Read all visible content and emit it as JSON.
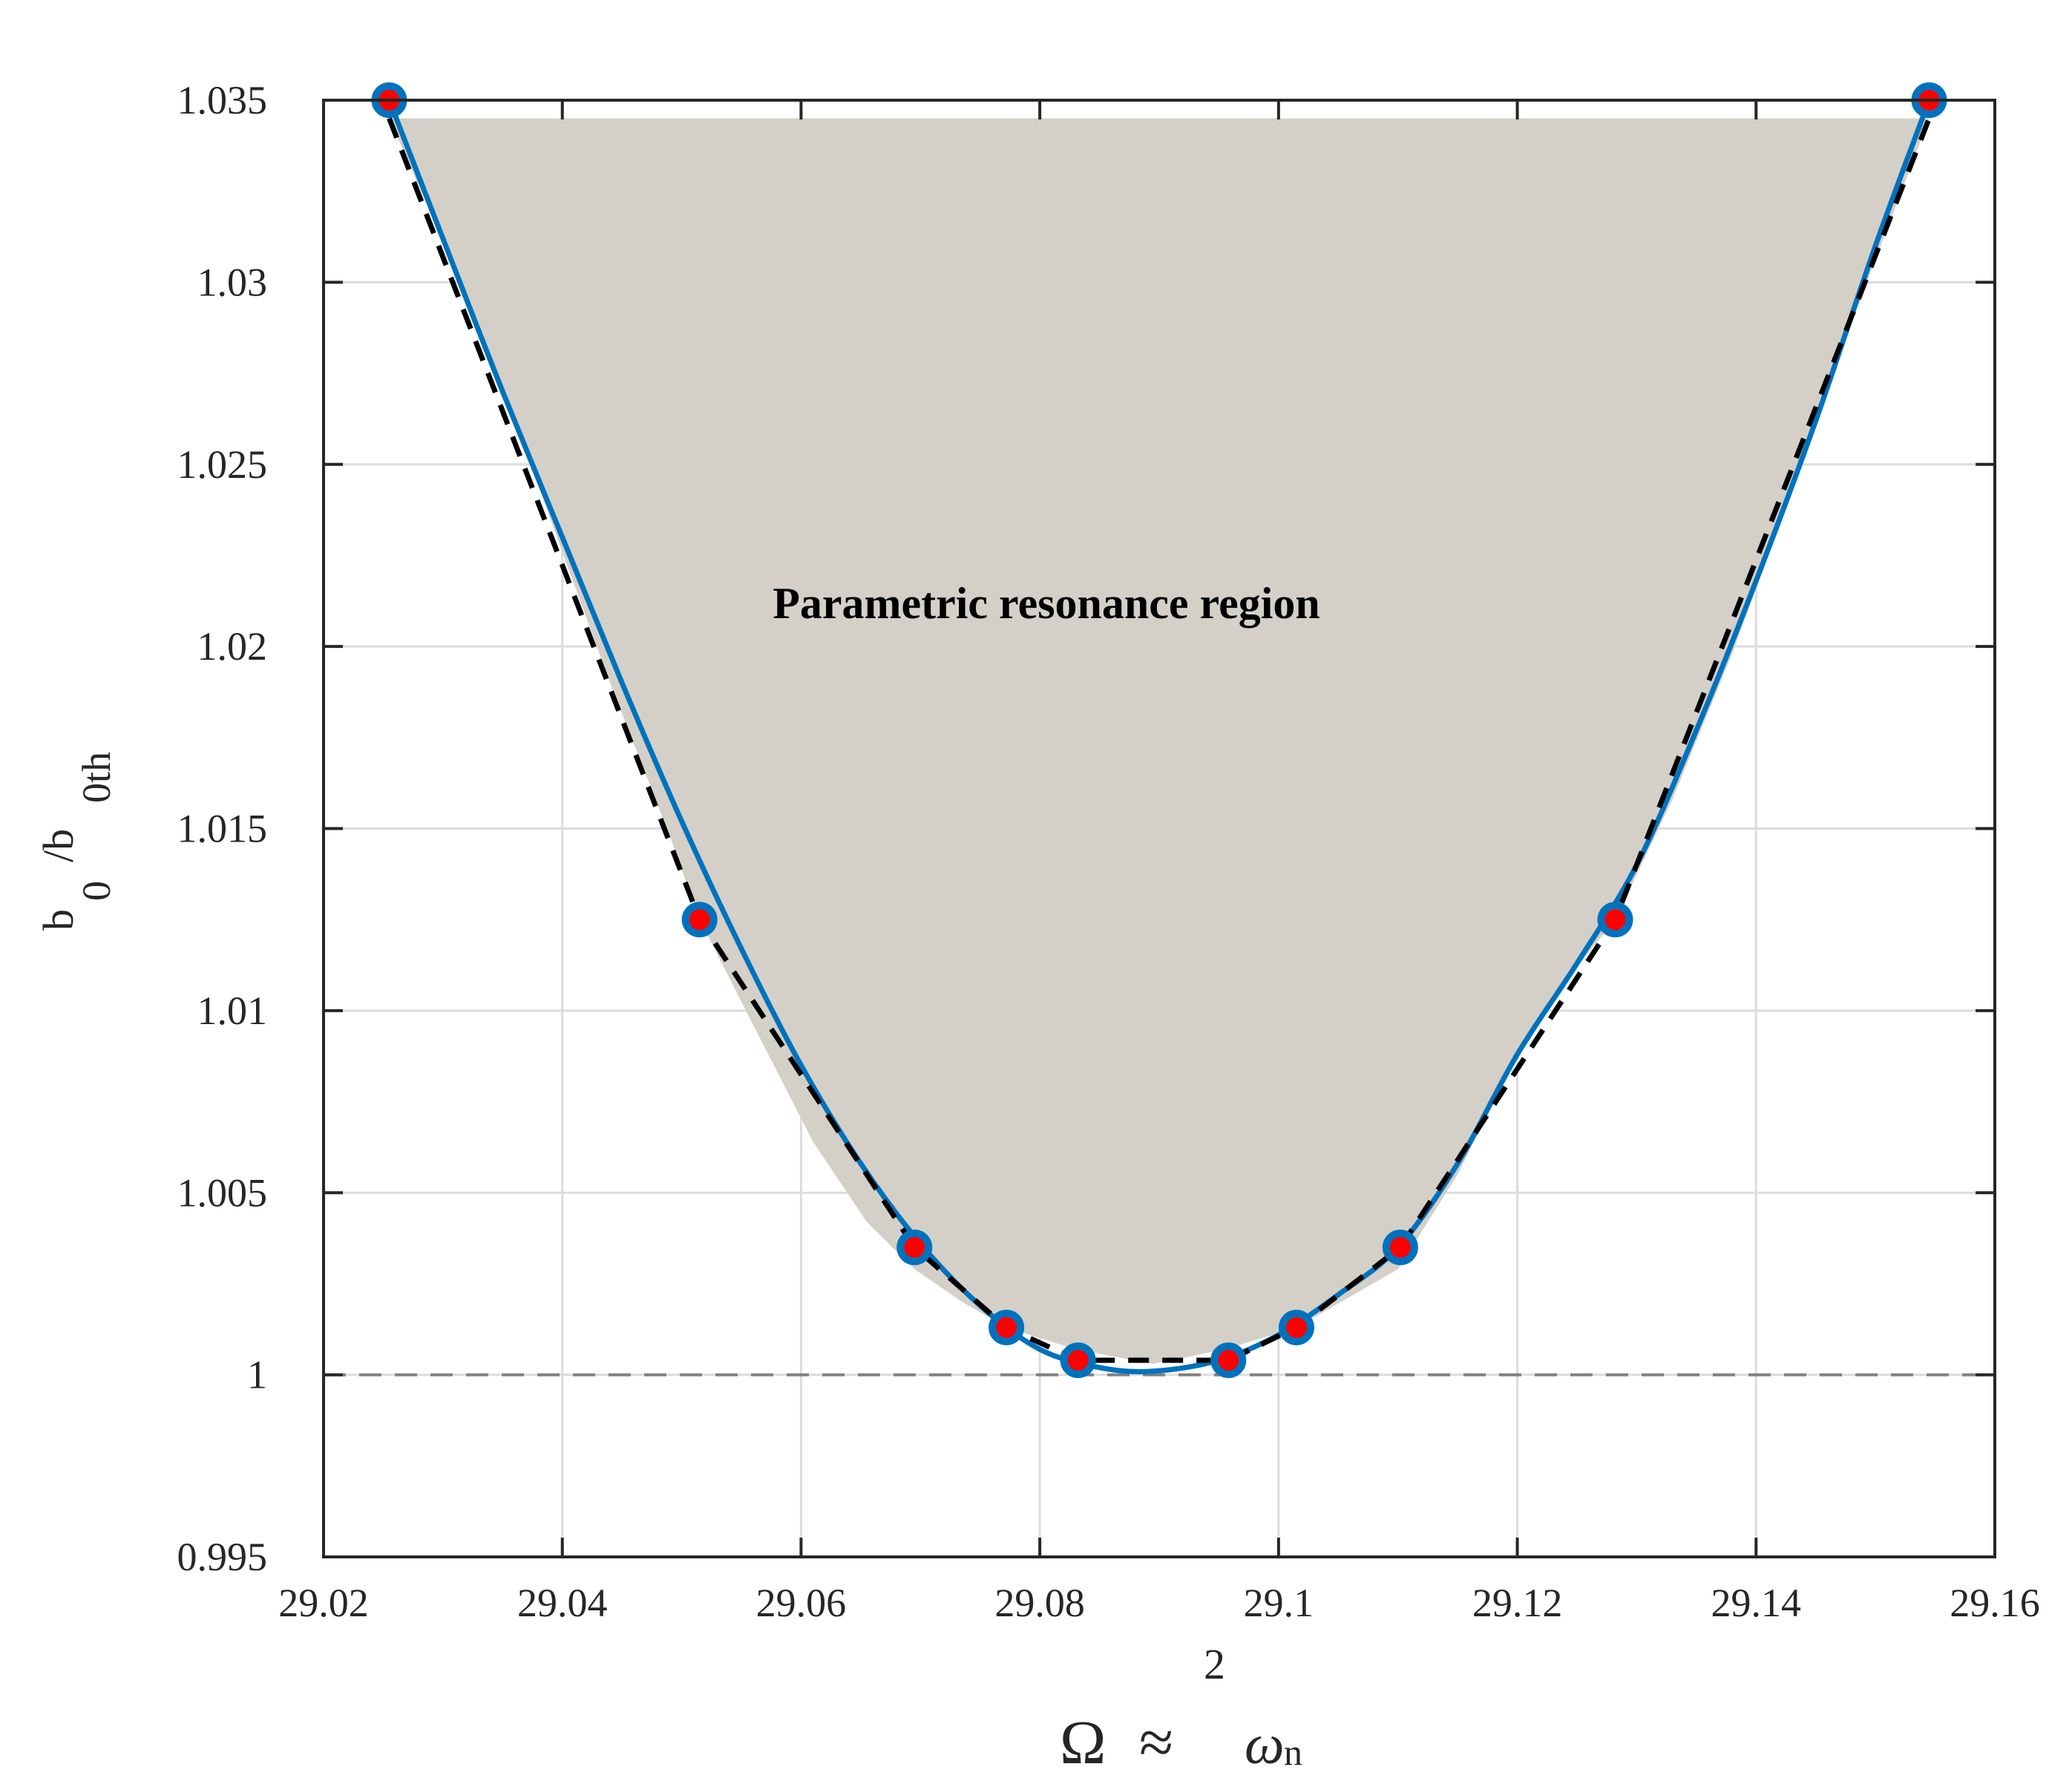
{
  "chart_data": {
    "type": "line",
    "title": "",
    "xlim": [
      29.02,
      29.16
    ],
    "ylim": [
      0.995,
      1.035
    ],
    "x_ticks": [
      29.02,
      29.04,
      29.06,
      29.08,
      29.1,
      29.12,
      29.14,
      29.16
    ],
    "x_tick_labels": [
      "29.02",
      "29.04",
      "29.06",
      "29.08",
      "29.1",
      "29.12",
      "29.14",
      "29.16"
    ],
    "y_ticks": [
      0.995,
      1,
      1.005,
      1.01,
      1.015,
      1.02,
      1.025,
      1.03,
      1.035
    ],
    "y_tick_labels": [
      "0.995",
      "1",
      "1.005",
      "1.01",
      "1.015",
      "1.02",
      "1.025",
      "1.03",
      "1.035"
    ],
    "grid": true,
    "xlabel": {
      "omega": "Ω",
      "approx": "≈",
      "power": "2",
      "symbol": "ω",
      "subscript": "n"
    },
    "ylabel": {
      "part1": "b",
      "sub1": "0",
      "slash": "/b",
      "sub2": "0th"
    },
    "annotation": "Parametric resonance region",
    "reference_line": {
      "y": 1,
      "style": "dashed",
      "color": "#808080"
    },
    "region": {
      "fill_color": "#d4d0c8",
      "top": 1.0345,
      "left_x": [
        29.0255,
        29.0295,
        29.034,
        29.039,
        29.044,
        29.049,
        29.0515,
        29.056,
        29.061,
        29.0655,
        29.0695,
        29.0735,
        29.0772,
        29.083,
        29.0895
      ],
      "left_y": [
        1.0345,
        1.0315,
        1.028,
        1.0235,
        1.019,
        1.0148,
        1.0125,
        1.0096,
        1.0064,
        1.0042,
        1.0029,
        1.002,
        1.0013,
        1.0007,
        1.0003
      ],
      "right_x": [
        29.0895,
        29.0955,
        29.1015,
        29.11,
        29.115,
        29.12,
        29.125,
        29.1282,
        29.133,
        29.138,
        29.143,
        29.148,
        29.1545
      ],
      "right_y": [
        1.0003,
        1.0007,
        1.0013,
        1.0029,
        1.0055,
        1.0088,
        1.0112,
        1.0125,
        1.0158,
        1.0198,
        1.0243,
        1.0289,
        1.0345
      ]
    },
    "series": [
      {
        "style": "solid",
        "color": "#0072bd",
        "x": [
          29.0255,
          29.03,
          29.035,
          29.04,
          29.045,
          29.05,
          29.055,
          29.06,
          29.065,
          29.07,
          29.075,
          29.08,
          29.085,
          29.0895,
          29.095,
          29.1,
          29.105,
          29.11,
          29.115,
          29.12,
          29.125,
          29.13,
          29.135,
          29.14,
          29.145,
          29.15,
          29.1545
        ],
        "y": [
          1.035,
          1.0312,
          1.027,
          1.023,
          1.019,
          1.0152,
          1.0117,
          1.0085,
          1.0058,
          1.0036,
          1.0019,
          1.0007,
          1.0002,
          1.0001,
          1.0004,
          1.0011,
          1.0022,
          1.0035,
          1.0058,
          1.0088,
          1.0113,
          1.014,
          1.0177,
          1.0218,
          1.0262,
          1.031,
          1.035
        ]
      },
      {
        "style": "dashed",
        "color": "#000000",
        "x": [
          29.0255,
          29.0515,
          29.0695,
          29.0772,
          29.0832,
          29.0958,
          29.1015,
          29.1102,
          29.1282,
          29.1545
        ],
        "y": [
          1.0345,
          1.0125,
          1.0035,
          1.0013,
          1.0004,
          1.0004,
          1.0013,
          1.0035,
          1.0125,
          1.0345
        ]
      }
    ],
    "markers": {
      "edge_color": "#0072bd",
      "face_color": "#ff0000",
      "x": [
        29.0255,
        29.0515,
        29.0695,
        29.0772,
        29.0832,
        29.0958,
        29.1015,
        29.1102,
        29.1282,
        29.1545
      ],
      "y": [
        1.035,
        1.0125,
        1.0035,
        1.0013,
        1.0004,
        1.0004,
        1.0013,
        1.0035,
        1.0125,
        1.035
      ]
    }
  }
}
